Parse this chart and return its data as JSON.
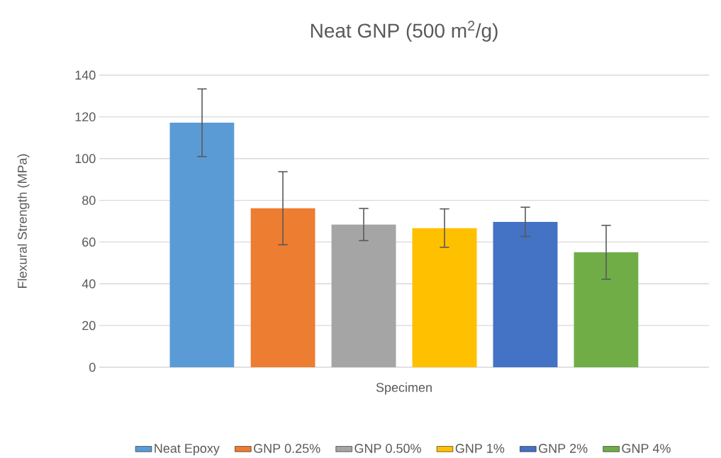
{
  "chart_data": {
    "type": "bar",
    "title": "Neat GNP (500 m$^{2}$/g)",
    "xlabel": "Specimen",
    "ylabel": "Flexural Strength (MPa)",
    "categories": [
      null
    ],
    "series": [
      {
        "name": "Neat Epoxy",
        "color": "#5b9bd5",
        "values": [
          117.2
        ],
        "errors": [
          16.2
        ]
      },
      {
        "name": "GNP 0.25%",
        "color": "#ed7d31",
        "values": [
          76.2
        ],
        "errors": [
          17.5
        ]
      },
      {
        "name": "GNP 0.50%",
        "color": "#a5a5a5",
        "values": [
          68.4
        ],
        "errors": [
          7.7
        ]
      },
      {
        "name": "GNP 1%",
        "color": "#ffc000",
        "values": [
          66.7
        ],
        "errors": [
          9.2
        ]
      },
      {
        "name": "GNP 2%",
        "color": "#4472c4",
        "values": [
          69.7
        ],
        "errors": [
          7.0
        ]
      },
      {
        "name": "GNP 4%",
        "color": "#70ad47",
        "values": [
          55.1
        ],
        "errors": [
          12.9
        ]
      }
    ],
    "ylim": [
      0,
      140
    ],
    "yticks": [
      0,
      20,
      40,
      60,
      80,
      100,
      120,
      140
    ],
    "grid": "y",
    "legend": "bottom"
  }
}
